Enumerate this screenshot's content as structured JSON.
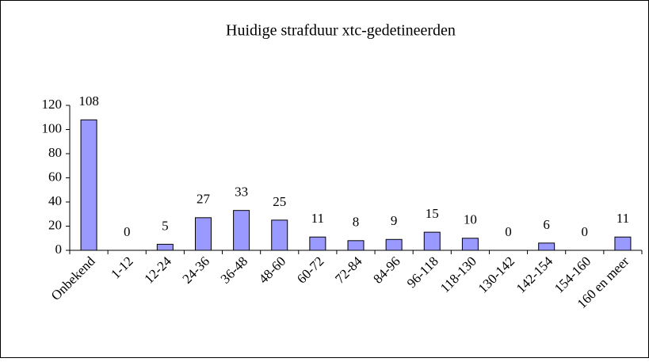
{
  "chart_data": {
    "type": "bar",
    "title": "Huidige strafduur xtc-gedetineerden",
    "categories": [
      "Onbekend",
      "1-12",
      "12-24",
      "24-36",
      "36-48",
      "48-60",
      "60-72",
      "72-84",
      "84-96",
      "96-118",
      "118-130",
      "130-142",
      "142-154",
      "154-160",
      "160 en meer"
    ],
    "values": [
      108,
      0,
      5,
      27,
      33,
      25,
      11,
      8,
      9,
      15,
      10,
      0,
      6,
      0,
      11
    ],
    "color": "#9999ff",
    "ylim": [
      0,
      120
    ],
    "yticks": [
      0,
      20,
      40,
      60,
      80,
      100,
      120
    ],
    "grid": false
  }
}
